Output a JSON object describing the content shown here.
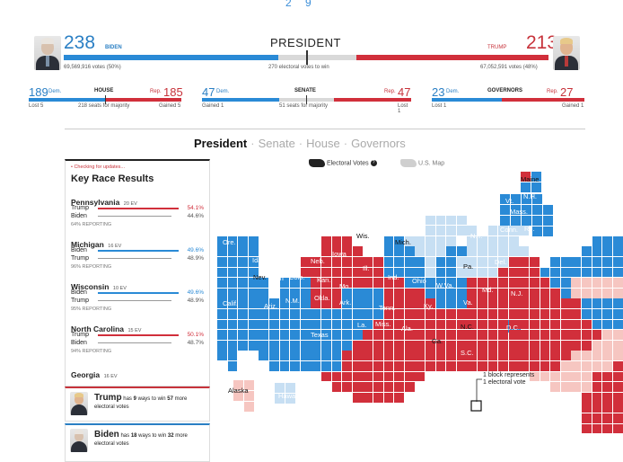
{
  "top_fragment": "2 9",
  "president": {
    "title": "PRESIDENT",
    "biden_ev": "238",
    "biden_label": "BIDEN",
    "biden_votes": "69,569,916 votes (50%)",
    "trump_ev": "213",
    "trump_label": "TRUMP",
    "trump_votes": "67,052,591 votes (48%)",
    "to_win": "270 electoral votes to win",
    "biden_share": 0.442,
    "trump_share": 0.396
  },
  "house": {
    "title": "HOUSE",
    "dem_num": "189",
    "dem_lbl": "Dem.",
    "rep_num": "185",
    "rep_lbl": "Rep.",
    "left_note": "Lost 5",
    "mid_note": "218 seats for majority",
    "right_note": "Gained 5"
  },
  "senate": {
    "title": "SENATE",
    "dem_num": "47",
    "dem_lbl": "Dem.",
    "rep_num": "47",
    "rep_lbl": "Rep.",
    "left_note": "Gained 1",
    "mid_note": "51 seats for majority",
    "right_note": "Lost 1"
  },
  "governors": {
    "title": "GOVERNORS",
    "dem_num": "23",
    "dem_lbl": "Dem.",
    "rep_num": "27",
    "rep_lbl": "Rep.",
    "left_note": "Lost 1",
    "right_note": "Gained 1"
  },
  "nav": {
    "president": "President",
    "senate": "Senate",
    "house": "House",
    "governors": "Governors"
  },
  "sidebar": {
    "status": "• Checking for updates...",
    "title": "Key Race Results",
    "races": [
      {
        "state": "Pennsylvania",
        "ev": "20 EV",
        "c1": "Trump",
        "p1": "54.1%",
        "c2": "Biden",
        "p2": "44.6%",
        "reporting": "64% REPORTING",
        "lead": "red"
      },
      {
        "state": "Michigan",
        "ev": "16 EV",
        "c1": "Biden",
        "p1": "49.6%",
        "c2": "Trump",
        "p2": "48.9%",
        "reporting": "96% REPORTING",
        "lead": "blue"
      },
      {
        "state": "Wisconsin",
        "ev": "10 EV",
        "c1": "Biden",
        "p1": "49.6%",
        "c2": "Trump",
        "p2": "48.9%",
        "reporting": "95% REPORTING",
        "lead": "blue"
      },
      {
        "state": "North Carolina",
        "ev": "15 EV",
        "c1": "Trump",
        "p1": "50.1%",
        "c2": "Biden",
        "p2": "48.7%",
        "reporting": "94% REPORTING",
        "lead": "red"
      }
    ],
    "last_state": "Georgia",
    "last_ev": "16 EV"
  },
  "cards": {
    "trump_name": "Trump",
    "trump_text_a": "has",
    "trump_ways": "9",
    "trump_text_b": "ways to win",
    "trump_votes": "57",
    "trump_text_c": "more electoral votes",
    "biden_name": "Biden",
    "biden_text_a": "has",
    "biden_ways": "18",
    "biden_text_b": "ways to win",
    "biden_votes": "32",
    "biden_text_c": "more electoral votes"
  },
  "map": {
    "toggle_ev": "Electoral Votes",
    "toggle_us": "U.S. Map",
    "legend_line1": "1 block represents",
    "legend_line2": "1 electoral vote",
    "labels": [
      "Maine",
      "N.H.",
      "Vt.",
      "Mass.",
      "Wash.",
      "Minn.",
      "Wis.",
      "Mich.",
      "N.Y.",
      "Conn.",
      "R.I.",
      "Ore.",
      "Mont.",
      "N.D.",
      "Idaho",
      "Wyo.",
      "S.D.",
      "Iowa",
      "Neb.",
      "Nev.",
      "Utah",
      "Ill.",
      "Pa.",
      "Del.",
      "N.J.",
      "Md.",
      "Calif.",
      "Colo.",
      "Kan.",
      "Ind.",
      "Ohio",
      "W.Va.",
      "Va.",
      "Ariz.",
      "N.M.",
      "Okla.",
      "Mo.",
      "Ark.",
      "Ky.",
      "Tenn.",
      "N.C.",
      "D.C.",
      "Texas",
      "La.",
      "Miss.",
      "Ala.",
      "Ga.",
      "S.C.",
      "Fla.",
      "Alaska",
      "Hawaii"
    ]
  },
  "colors": {
    "dem": "#2a8ad6",
    "dem_light": "#c7dff3",
    "rep": "#d12f3b",
    "rep_light": "#f6c6c1",
    "neutral": "#d6d6d6"
  }
}
